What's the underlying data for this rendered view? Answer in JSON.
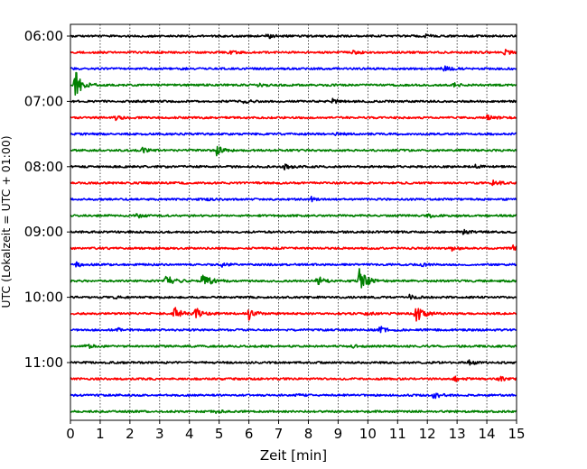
{
  "chart_data": {
    "type": "line",
    "title": "",
    "xlabel": "Zeit  [min]",
    "ylabel": "UTC (Lokalzeit = UTC + 01:00)",
    "xlim": [
      0,
      15
    ],
    "x_ticks": [
      0,
      1,
      2,
      3,
      4,
      5,
      6,
      7,
      8,
      9,
      10,
      11,
      12,
      13,
      14,
      15
    ],
    "x_grid": true,
    "y_tick_labels": [
      "06:00",
      "07:00",
      "08:00",
      "09:00",
      "10:00",
      "11:00"
    ],
    "row_interval_min": 15,
    "start_time": "06:00",
    "line_colors": [
      "#000000",
      "#ff0000",
      "#0000ff",
      "#008000"
    ],
    "series": [
      {
        "t": "06:00",
        "events": [
          {
            "x": 6.6,
            "amp": 0.15
          },
          {
            "x": 11.9,
            "amp": 0.12
          }
        ]
      },
      {
        "t": "06:15",
        "events": [
          {
            "x": 5.3,
            "amp": 0.12
          },
          {
            "x": 9.5,
            "amp": 0.12
          },
          {
            "x": 14.6,
            "amp": 0.15
          }
        ]
      },
      {
        "t": "06:30",
        "events": [
          {
            "x": 3.5,
            "amp": 0.08
          },
          {
            "x": 12.5,
            "amp": 0.25
          }
        ]
      },
      {
        "t": "06:45",
        "events": [
          {
            "x": 0.15,
            "amp": 0.9
          },
          {
            "x": 6.3,
            "amp": 0.12
          },
          {
            "x": 12.9,
            "amp": 0.12
          }
        ]
      },
      {
        "t": "07:00",
        "events": [
          {
            "x": 5.8,
            "amp": 0.12
          },
          {
            "x": 8.8,
            "amp": 0.15
          }
        ]
      },
      {
        "t": "07:15",
        "events": [
          {
            "x": 1.5,
            "amp": 0.15
          },
          {
            "x": 14.0,
            "amp": 0.15
          }
        ]
      },
      {
        "t": "07:30",
        "events": [
          {
            "x": 8.9,
            "amp": 0.08
          }
        ]
      },
      {
        "t": "07:45",
        "events": [
          {
            "x": 2.4,
            "amp": 0.15
          },
          {
            "x": 4.9,
            "amp": 0.3
          }
        ]
      },
      {
        "t": "08:00",
        "events": [
          {
            "x": 7.2,
            "amp": 0.15
          },
          {
            "x": 13.6,
            "amp": 0.12
          }
        ]
      },
      {
        "t": "08:15",
        "events": [
          {
            "x": 14.2,
            "amp": 0.2
          }
        ]
      },
      {
        "t": "08:30",
        "events": [
          {
            "x": 4.5,
            "amp": 0.08
          },
          {
            "x": 8.1,
            "amp": 0.12
          }
        ]
      },
      {
        "t": "08:45",
        "events": [
          {
            "x": 2.2,
            "amp": 0.15
          },
          {
            "x": 12.0,
            "amp": 0.15
          }
        ]
      },
      {
        "t": "09:00",
        "events": [
          {
            "x": 13.2,
            "amp": 0.12
          }
        ]
      },
      {
        "t": "09:15",
        "events": [
          {
            "x": 12.8,
            "amp": 0.15
          },
          {
            "x": 14.9,
            "amp": 0.25
          }
        ]
      },
      {
        "t": "09:30",
        "events": [
          {
            "x": 0.2,
            "amp": 0.12
          },
          {
            "x": 5.1,
            "amp": 0.12
          },
          {
            "x": 11.8,
            "amp": 0.08
          }
        ]
      },
      {
        "t": "09:45",
        "events": [
          {
            "x": 3.2,
            "amp": 0.45
          },
          {
            "x": 4.4,
            "amp": 0.55
          },
          {
            "x": 8.3,
            "amp": 0.3
          },
          {
            "x": 9.7,
            "amp": 0.75
          }
        ]
      },
      {
        "t": "10:00",
        "events": [
          {
            "x": 1.5,
            "amp": 0.08
          },
          {
            "x": 11.4,
            "amp": 0.12
          }
        ]
      },
      {
        "t": "10:15",
        "events": [
          {
            "x": 3.5,
            "amp": 0.4
          },
          {
            "x": 4.2,
            "amp": 0.4
          },
          {
            "x": 6.0,
            "amp": 0.35
          },
          {
            "x": 9.9,
            "amp": 0.15
          },
          {
            "x": 11.6,
            "amp": 0.55
          }
        ]
      },
      {
        "t": "10:30",
        "events": [
          {
            "x": 1.6,
            "amp": 0.08
          },
          {
            "x": 10.4,
            "amp": 0.2
          }
        ]
      },
      {
        "t": "10:45",
        "events": [
          {
            "x": 0.5,
            "amp": 0.15
          },
          {
            "x": 9.4,
            "amp": 0.1
          }
        ]
      },
      {
        "t": "11:00",
        "events": [
          {
            "x": 13.4,
            "amp": 0.15
          }
        ]
      },
      {
        "t": "11:15",
        "events": [
          {
            "x": 12.9,
            "amp": 0.15
          },
          {
            "x": 14.4,
            "amp": 0.15
          }
        ]
      },
      {
        "t": "11:30",
        "events": [
          {
            "x": 7.5,
            "amp": 0.1
          },
          {
            "x": 12.2,
            "amp": 0.2
          }
        ]
      },
      {
        "t": "11:45",
        "events": [
          {
            "x": 4.9,
            "amp": 0.12
          }
        ]
      }
    ]
  }
}
